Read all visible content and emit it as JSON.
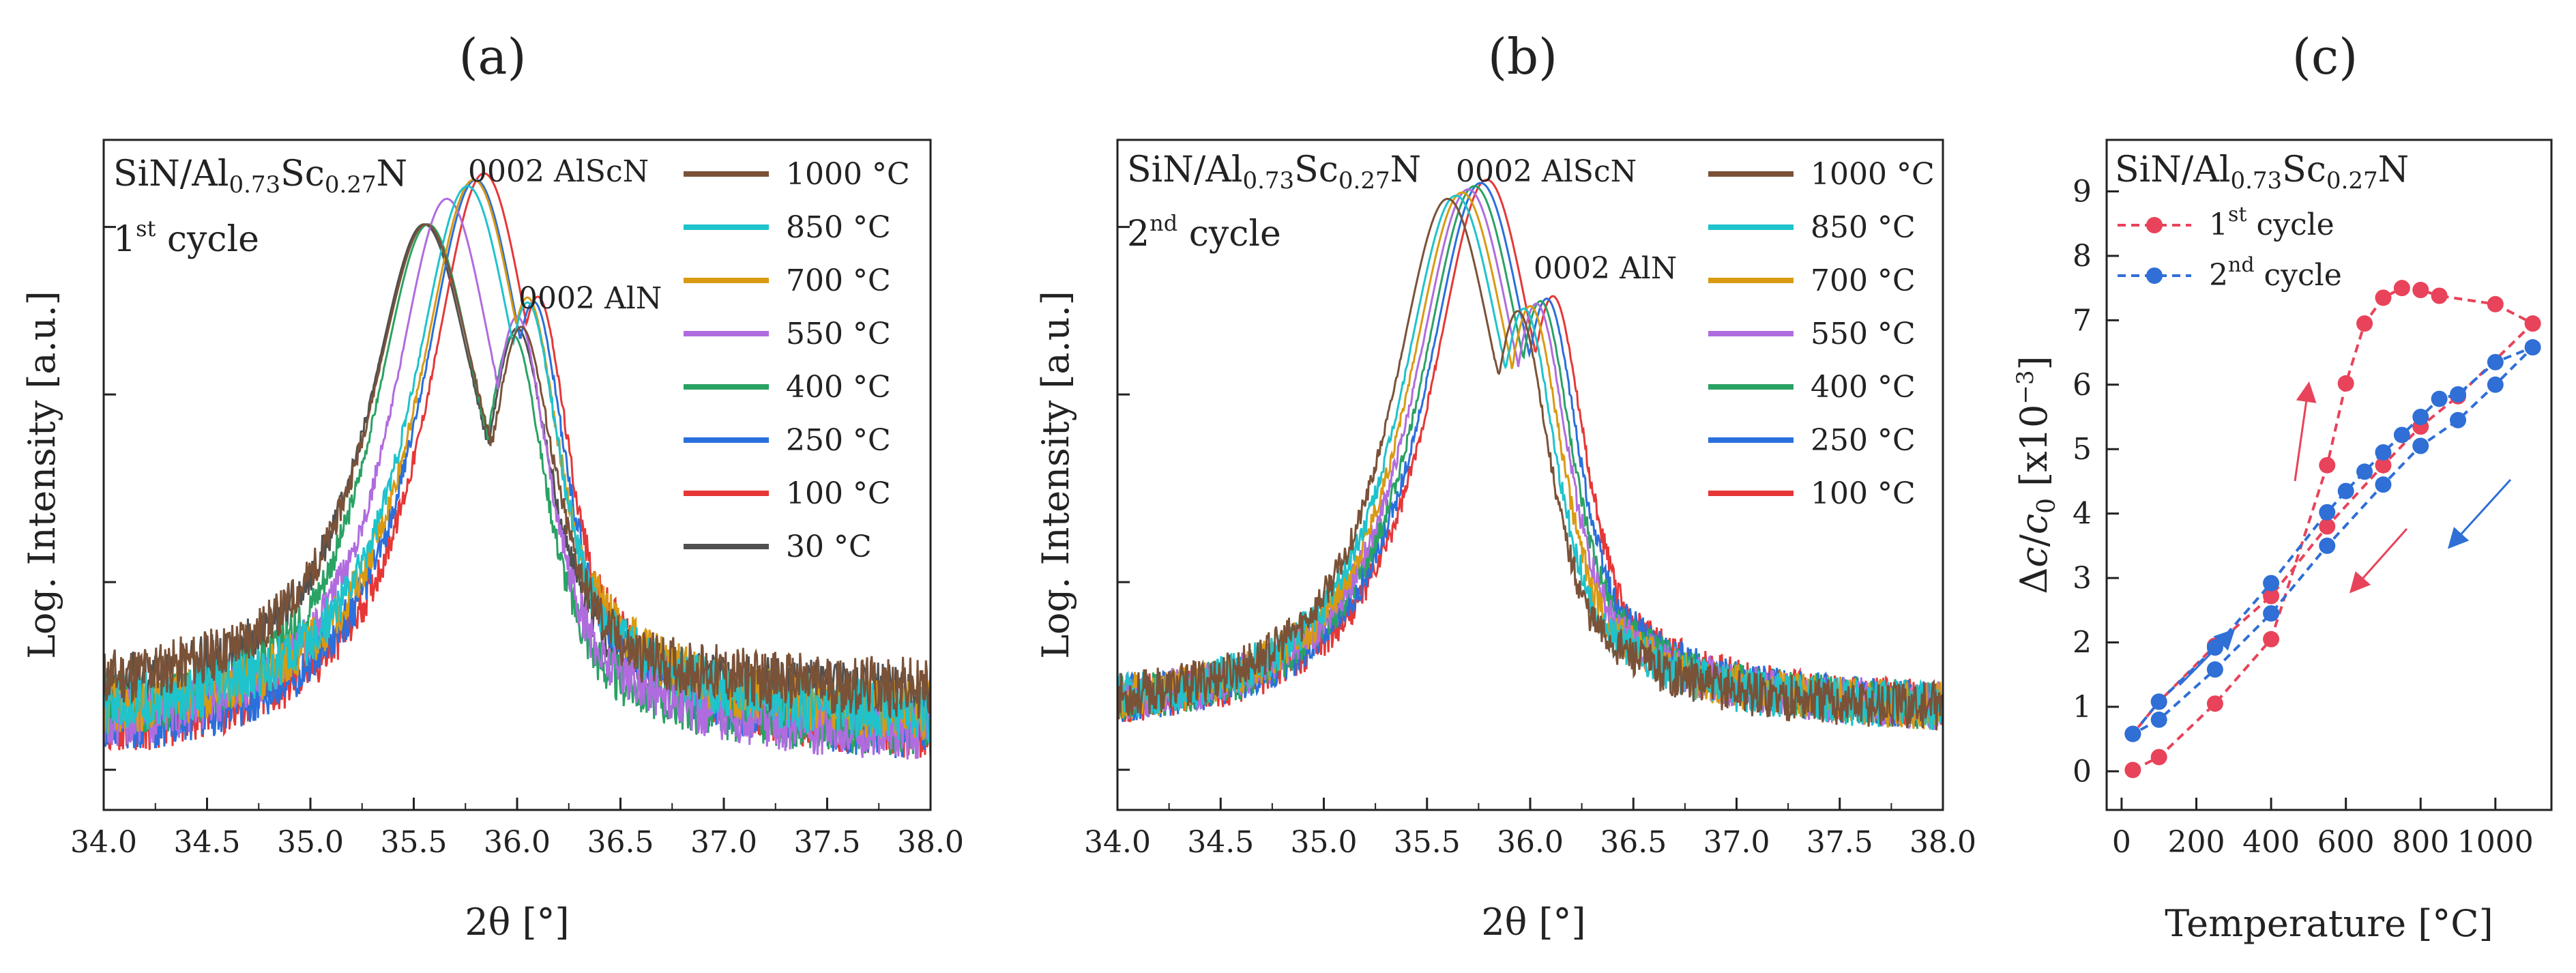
{
  "chart_data": [
    {
      "panel": "(a)",
      "type": "line",
      "sample_prefix": "SiN/Al",
      "sample_al": "0.73",
      "sample_mid": "Sc",
      "sample_sc": "0.27",
      "sample_suffix": "N",
      "cycle_num": "1",
      "cycle_sup": "st",
      "cycle_word": " cycle",
      "xlabel": "2θ [°]",
      "ylabel": "Log. Intensity [a.u.]",
      "xlim": [
        34.0,
        38.0
      ],
      "xticks": [
        "34.0",
        "34.5",
        "35.0",
        "35.5",
        "36.0",
        "36.5",
        "37.0",
        "37.5",
        "38.0"
      ],
      "annotations": [
        "0002 AlScN",
        "0002 AlN"
      ],
      "series": [
        {
          "name": "1000 °C",
          "color": "#7a5238",
          "peak1": 35.56,
          "peak2": 36.02,
          "height": 0.92,
          "baseline": 0.18
        },
        {
          "name": "850 °C",
          "color": "#1ec3cc",
          "peak1": 35.76,
          "peak2": 36.05,
          "height": 0.98,
          "baseline": 0.14
        },
        {
          "name": "700 °C",
          "color": "#d99a12",
          "peak1": 35.79,
          "peak2": 36.05,
          "height": 0.99,
          "baseline": 0.14
        },
        {
          "name": "550 °C",
          "color": "#b06cdf",
          "peak1": 35.66,
          "peak2": 36.0,
          "height": 0.96,
          "baseline": 0.11
        },
        {
          "name": "400 °C",
          "color": "#2aa264",
          "peak1": 35.57,
          "peak2": 35.98,
          "height": 0.92,
          "baseline": 0.12
        },
        {
          "name": "250 °C",
          "color": "#2a6fdc",
          "peak1": 35.8,
          "peak2": 36.08,
          "height": 0.99,
          "baseline": 0.11
        },
        {
          "name": "100 °C",
          "color": "#e63737",
          "peak1": 35.84,
          "peak2": 36.1,
          "height": 1.0,
          "baseline": 0.11
        },
        {
          "name": "30 °C",
          "color": "#505050",
          "peak1": 35.55,
          "peak2": 36.0,
          "height": 0.92,
          "baseline": 0.17
        }
      ]
    },
    {
      "panel": "(b)",
      "type": "line",
      "sample_prefix": "SiN/Al",
      "sample_al": "0.73",
      "sample_mid": "Sc",
      "sample_sc": "0.27",
      "sample_suffix": "N",
      "cycle_num": "2",
      "cycle_sup": "nd",
      "cycle_word": " cycle",
      "xlabel": "2θ [°]",
      "ylabel": "Log. Intensity [a.u.]",
      "xlim": [
        34.0,
        38.0
      ],
      "xticks": [
        "34.0",
        "34.5",
        "35.0",
        "35.5",
        "36.0",
        "36.5",
        "37.0",
        "37.5",
        "38.0"
      ],
      "annotations": [
        "0002 AlScN",
        "0002 AlN"
      ],
      "series": [
        {
          "name": "1000 °C",
          "color": "#7a5238",
          "peak1": 35.6,
          "peak2": 35.94,
          "height": 0.96,
          "baseline": 0.15
        },
        {
          "name": "850 °C",
          "color": "#1ec3cc",
          "peak1": 35.64,
          "peak2": 35.97,
          "height": 0.965,
          "baseline": 0.15
        },
        {
          "name": "700 °C",
          "color": "#d99a12",
          "peak1": 35.67,
          "peak2": 36.0,
          "height": 0.97,
          "baseline": 0.15
        },
        {
          "name": "550 °C",
          "color": "#b06cdf",
          "peak1": 35.7,
          "peak2": 36.03,
          "height": 0.975,
          "baseline": 0.15
        },
        {
          "name": "400 °C",
          "color": "#2aa264",
          "peak1": 35.73,
          "peak2": 36.05,
          "height": 0.98,
          "baseline": 0.15
        },
        {
          "name": "250 °C",
          "color": "#2a6fdc",
          "peak1": 35.76,
          "peak2": 36.08,
          "height": 0.985,
          "baseline": 0.15
        },
        {
          "name": "100 °C",
          "color": "#e63737",
          "peak1": 35.79,
          "peak2": 36.11,
          "height": 0.99,
          "baseline": 0.15
        }
      ]
    },
    {
      "panel": "(c)",
      "type": "scatter",
      "sample_prefix": "SiN/Al",
      "sample_al": "0.73",
      "sample_mid": "Sc",
      "sample_sc": "0.27",
      "sample_suffix": "N",
      "xlabel": "Temperature [°C]",
      "ylabel_delta": "Δ",
      "ylabel_c": "c",
      "ylabel_slash": "/",
      "ylabel_c0": "c",
      "ylabel_sub0": "0",
      "ylabel_units": " [x10",
      "ylabel_exp": "−3",
      "ylabel_close": "]",
      "xlim": [
        -40,
        1150
      ],
      "ylim": [
        -0.6,
        9.8
      ],
      "xticks": [
        0,
        200,
        400,
        600,
        800,
        1000
      ],
      "yticks": [
        0,
        1,
        2,
        3,
        4,
        5,
        6,
        7,
        8,
        9
      ],
      "series": [
        {
          "name_num": "1",
          "name_sup": "st",
          "name_word": "  cycle",
          "color": "#e8435a",
          "x": [
            30,
            100,
            250,
            400,
            550,
            600,
            650,
            700,
            750,
            800,
            850,
            1000,
            1100,
            900,
            800,
            700,
            550,
            400,
            250,
            100,
            30
          ],
          "y": [
            0.02,
            0.22,
            1.05,
            2.05,
            4.75,
            6.02,
            6.95,
            7.35,
            7.5,
            7.47,
            7.38,
            7.25,
            6.95,
            5.82,
            5.35,
            4.75,
            3.8,
            2.72,
            1.95,
            1.08,
            0.58
          ],
          "path_order": [
            0,
            1,
            2,
            3,
            4,
            5,
            6,
            7,
            8,
            9,
            10,
            11,
            12,
            13,
            14,
            15,
            16,
            17,
            18,
            19,
            20
          ]
        },
        {
          "name_num": "2",
          "name_sup": "nd",
          "name_word": "  cycle",
          "color": "#2f6fd6",
          "x": [
            30,
            100,
            250,
            400,
            550,
            600,
            650,
            700,
            750,
            800,
            850,
            900,
            1000,
            1100,
            1000,
            900,
            800,
            700,
            550,
            400,
            250,
            100,
            30
          ],
          "y": [
            0.58,
            1.08,
            1.92,
            2.92,
            4.02,
            4.35,
            4.65,
            4.95,
            5.22,
            5.5,
            5.78,
            5.85,
            6.35,
            6.58,
            6.0,
            5.45,
            5.05,
            4.45,
            3.5,
            2.45,
            1.58,
            0.8,
            0.58
          ],
          "path_order": [
            0,
            1,
            2,
            3,
            4,
            5,
            6,
            7,
            8,
            9,
            10,
            11,
            12,
            13,
            14,
            15,
            16,
            17,
            18,
            19,
            20,
            21,
            22
          ]
        }
      ]
    }
  ]
}
